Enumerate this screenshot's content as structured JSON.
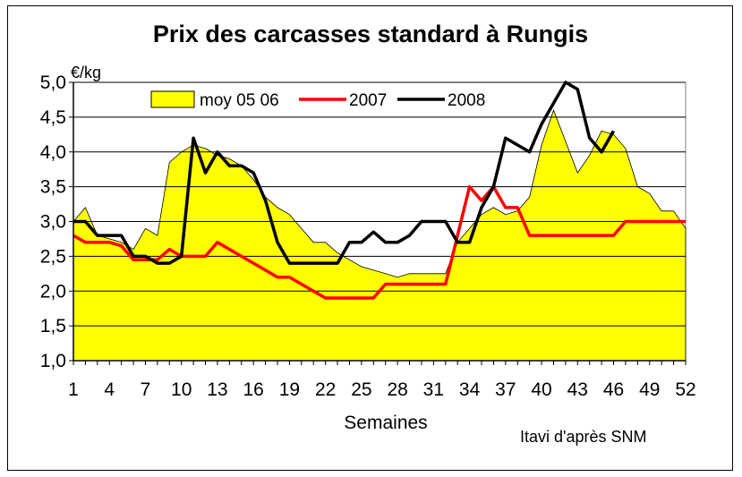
{
  "chart_data": {
    "type": "line",
    "title": "Prix des carcasses standard à Rungis",
    "unit_label": "€/kg",
    "xlabel": "Semaines",
    "source": "Itavi  d'après SNM",
    "ylim": [
      1.0,
      5.0
    ],
    "y_ticks": [
      "1,0",
      "1,5",
      "2,0",
      "2,5",
      "3,0",
      "3,5",
      "4,0",
      "4,5",
      "5,0"
    ],
    "x_ticks": [
      "1",
      "4",
      "7",
      "10",
      "13",
      "16",
      "19",
      "22",
      "25",
      "28",
      "31",
      "34",
      "37",
      "40",
      "43",
      "46",
      "49",
      "52"
    ],
    "legend_position": "top",
    "colors": {
      "area": "#ffff00",
      "2007": "#ff0000",
      "2008": "#000000"
    },
    "series": [
      {
        "name": "moy 05 06",
        "style": "area",
        "x": [
          1,
          2,
          3,
          4,
          5,
          6,
          7,
          8,
          9,
          10,
          11,
          12,
          13,
          14,
          15,
          16,
          17,
          18,
          19,
          20,
          21,
          22,
          23,
          24,
          25,
          26,
          27,
          28,
          29,
          30,
          31,
          32,
          33,
          34,
          35,
          36,
          37,
          38,
          39,
          40,
          41,
          42,
          43,
          44,
          45,
          46,
          47,
          48,
          49,
          50,
          51,
          52
        ],
        "values": [
          3.0,
          3.2,
          2.8,
          2.75,
          2.7,
          2.6,
          2.9,
          2.8,
          3.85,
          4.0,
          4.1,
          4.05,
          3.95,
          3.9,
          3.8,
          3.6,
          3.35,
          3.2,
          3.1,
          2.9,
          2.7,
          2.7,
          2.55,
          2.45,
          2.35,
          2.3,
          2.25,
          2.2,
          2.25,
          2.25,
          2.25,
          2.25,
          2.7,
          2.9,
          3.1,
          3.2,
          3.1,
          3.15,
          3.35,
          4.1,
          4.6,
          4.15,
          3.7,
          3.95,
          4.3,
          4.25,
          4.05,
          3.5,
          3.4,
          3.15,
          3.15,
          2.9
        ]
      },
      {
        "name": "2007",
        "style": "line",
        "x": [
          1,
          2,
          3,
          4,
          5,
          6,
          7,
          8,
          9,
          10,
          11,
          12,
          13,
          14,
          15,
          16,
          17,
          18,
          19,
          20,
          21,
          22,
          23,
          24,
          25,
          26,
          27,
          28,
          29,
          30,
          31,
          32,
          33,
          34,
          35,
          36,
          37,
          38,
          39,
          40,
          41,
          42,
          43,
          44,
          45,
          46,
          47,
          48,
          49,
          50,
          51,
          52
        ],
        "values": [
          2.8,
          2.7,
          2.7,
          2.7,
          2.65,
          2.45,
          2.45,
          2.45,
          2.6,
          2.5,
          2.5,
          2.5,
          2.7,
          2.6,
          2.5,
          2.4,
          2.3,
          2.2,
          2.2,
          2.1,
          2.0,
          1.9,
          1.9,
          1.9,
          1.9,
          1.9,
          2.1,
          2.1,
          2.1,
          2.1,
          2.1,
          2.1,
          2.8,
          3.5,
          3.3,
          3.5,
          3.2,
          3.2,
          2.8,
          2.8,
          2.8,
          2.8,
          2.8,
          2.8,
          2.8,
          2.8,
          3.0,
          3.0,
          3.0,
          3.0,
          3.0,
          3.0
        ]
      },
      {
        "name": "2008",
        "style": "line",
        "x": [
          1,
          2,
          3,
          4,
          5,
          6,
          7,
          8,
          9,
          10,
          11,
          12,
          13,
          14,
          15,
          16,
          17,
          18,
          19,
          20,
          21,
          22,
          23,
          24,
          25,
          26,
          27,
          28,
          29,
          30,
          31,
          32,
          33,
          34,
          35,
          36,
          37,
          38,
          39,
          40,
          41,
          42,
          43,
          44,
          45,
          46
        ],
        "values": [
          3.0,
          3.0,
          2.8,
          2.8,
          2.8,
          2.5,
          2.5,
          2.4,
          2.4,
          2.5,
          4.2,
          3.7,
          4.0,
          3.8,
          3.8,
          3.7,
          3.3,
          2.7,
          2.4,
          2.4,
          2.4,
          2.4,
          2.4,
          2.7,
          2.7,
          2.85,
          2.7,
          2.7,
          2.8,
          3.0,
          3.0,
          3.0,
          2.7,
          2.7,
          3.2,
          3.5,
          4.2,
          4.1,
          4.0,
          4.4,
          4.7,
          5.0,
          4.9,
          4.2,
          4.0,
          4.3
        ]
      }
    ]
  }
}
